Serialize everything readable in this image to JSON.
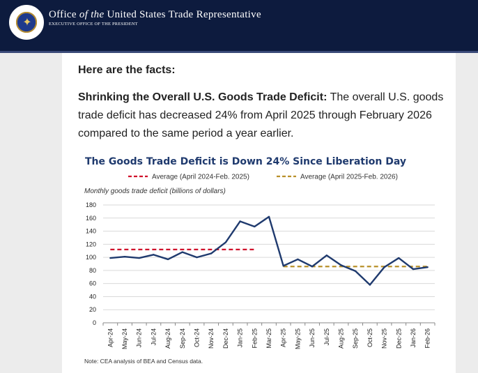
{
  "header": {
    "title_part1": "Office ",
    "title_of_the": "of the",
    "title_part2": " United States Trade Representative",
    "subtitle": "EXECUTIVE OFFICE OF THE PRESIDENT",
    "seal_icon": "presidential-seal-icon"
  },
  "article": {
    "facts_heading": "Here are the facts:",
    "para_bold": "Shrinking the Overall U.S. Goods Trade Deficit:",
    "para_text": " The overall U.S. goods trade deficit has decreased 24% from April 2025 through February 2026 compared to the same period a year earlier."
  },
  "colors": {
    "header_bg": "#0d1b3e",
    "line": "#1f3a6e",
    "avg_before": "#d0112b",
    "avg_after": "#b8902a",
    "title": "#1f3a6e"
  },
  "chart_data": {
    "type": "line",
    "title": "The Goods Trade Deficit is Down 24% Since Liberation Day",
    "ylabel": "Monthly goods trade deficit (billions of dollars)",
    "xlabel": "",
    "categories": [
      "Apr-24",
      "May-24",
      "Jun-24",
      "Jul-24",
      "Aug-24",
      "Sep-24",
      "Oct-24",
      "Nov-24",
      "Dec-24",
      "Jan-25",
      "Feb-25",
      "Mar-25",
      "Apr-25",
      "May-25",
      "Jun-25",
      "Jul-25",
      "Aug-25",
      "Sep-25",
      "Oct-25",
      "Nov-25",
      "Dec-25",
      "Jan-26",
      "Feb-26"
    ],
    "yticks": [
      0,
      20,
      40,
      60,
      80,
      100,
      120,
      140,
      160,
      180
    ],
    "ylim": [
      0,
      180
    ],
    "grid": true,
    "series": [
      {
        "values": [
          99,
          101,
          99,
          104,
          97,
          108,
          100,
          106,
          123,
          155,
          147,
          162,
          87,
          97,
          86,
          103,
          88,
          79,
          58,
          85,
          99,
          82,
          85
        ]
      }
    ],
    "averages": [
      {
        "name": "Average (April 2024-Feb. 2025)",
        "value": 112,
        "from": "Apr-24",
        "to": "Feb-25",
        "style": "dashed"
      },
      {
        "name": "Average (April 2025-Feb. 2026)",
        "value": 86,
        "from": "Apr-25",
        "to": "Feb-26",
        "style": "dashed"
      }
    ],
    "legend_position": "top",
    "note": "Note: CEA analysis of BEA and Census data."
  }
}
